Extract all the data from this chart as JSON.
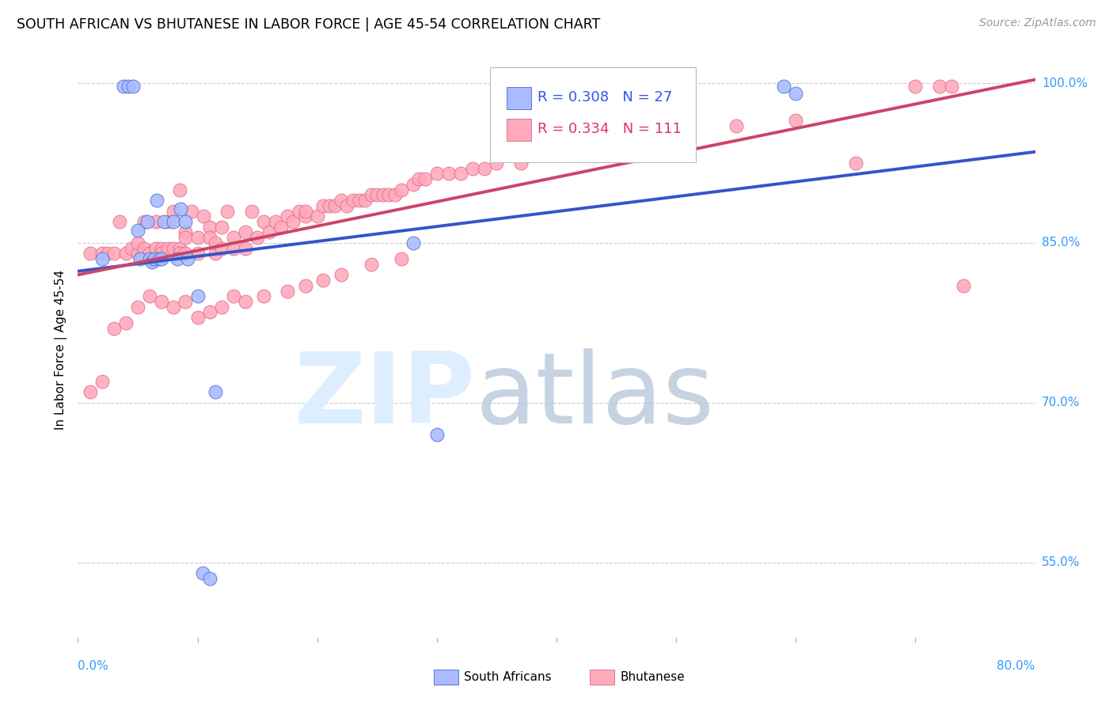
{
  "title": "SOUTH AFRICAN VS BHUTANESE IN LABOR FORCE | AGE 45-54 CORRELATION CHART",
  "source": "Source: ZipAtlas.com",
  "ylabel": "In Labor Force | Age 45-54",
  "xmin": 0.0,
  "xmax": 0.8,
  "ymin": 0.475,
  "ymax": 1.025,
  "yticks": [
    0.55,
    0.7,
    0.85,
    1.0
  ],
  "ytick_labels": [
    "55.0%",
    "70.0%",
    "85.0%",
    "100.0%"
  ],
  "R_blue": 0.308,
  "N_blue": 27,
  "R_pink": 0.334,
  "N_pink": 111,
  "blue_scatter_color": "#AABBFF",
  "blue_scatter_edge": "#4466CC",
  "pink_scatter_color": "#FFAABB",
  "pink_scatter_edge": "#DD6688",
  "blue_line_color": "#3355CC",
  "pink_line_color": "#CC4466",
  "legend_blue_text": "#3355EE",
  "legend_pink_text": "#DD3366",
  "blue_x": [
    0.02,
    0.038,
    0.042,
    0.046,
    0.05,
    0.052,
    0.058,
    0.06,
    0.062,
    0.064,
    0.066,
    0.068,
    0.07,
    0.072,
    0.08,
    0.083,
    0.086,
    0.09,
    0.092,
    0.1,
    0.104,
    0.11,
    0.115,
    0.28,
    0.3,
    0.59,
    0.6
  ],
  "blue_y": [
    0.835,
    0.997,
    0.997,
    0.997,
    0.862,
    0.835,
    0.87,
    0.835,
    0.832,
    0.835,
    0.89,
    0.835,
    0.835,
    0.87,
    0.87,
    0.835,
    0.882,
    0.87,
    0.835,
    0.8,
    0.54,
    0.535,
    0.71,
    0.85,
    0.67,
    0.997,
    0.99
  ],
  "pink_x": [
    0.01,
    0.02,
    0.025,
    0.03,
    0.035,
    0.04,
    0.045,
    0.05,
    0.05,
    0.055,
    0.055,
    0.06,
    0.06,
    0.065,
    0.065,
    0.07,
    0.07,
    0.075,
    0.075,
    0.08,
    0.08,
    0.085,
    0.085,
    0.085,
    0.09,
    0.09,
    0.09,
    0.095,
    0.1,
    0.1,
    0.105,
    0.11,
    0.11,
    0.115,
    0.115,
    0.12,
    0.12,
    0.125,
    0.13,
    0.13,
    0.14,
    0.14,
    0.145,
    0.15,
    0.155,
    0.16,
    0.165,
    0.17,
    0.175,
    0.18,
    0.185,
    0.19,
    0.19,
    0.2,
    0.205,
    0.21,
    0.215,
    0.22,
    0.225,
    0.23,
    0.235,
    0.24,
    0.245,
    0.25,
    0.255,
    0.26,
    0.265,
    0.27,
    0.28,
    0.285,
    0.29,
    0.3,
    0.31,
    0.32,
    0.33,
    0.34,
    0.35,
    0.37,
    0.39,
    0.41,
    0.43,
    0.45,
    0.5,
    0.55,
    0.6,
    0.65,
    0.7,
    0.72,
    0.73,
    0.74,
    0.01,
    0.02,
    0.03,
    0.04,
    0.05,
    0.06,
    0.07,
    0.08,
    0.09,
    0.1,
    0.11,
    0.12,
    0.13,
    0.14,
    0.155,
    0.175,
    0.19,
    0.205,
    0.22,
    0.245,
    0.27
  ],
  "pink_y": [
    0.84,
    0.84,
    0.84,
    0.84,
    0.87,
    0.84,
    0.845,
    0.84,
    0.85,
    0.845,
    0.87,
    0.84,
    0.84,
    0.845,
    0.87,
    0.845,
    0.84,
    0.845,
    0.87,
    0.845,
    0.88,
    0.845,
    0.84,
    0.9,
    0.86,
    0.855,
    0.84,
    0.88,
    0.855,
    0.84,
    0.875,
    0.865,
    0.855,
    0.84,
    0.85,
    0.865,
    0.845,
    0.88,
    0.855,
    0.845,
    0.86,
    0.845,
    0.88,
    0.855,
    0.87,
    0.86,
    0.87,
    0.865,
    0.875,
    0.87,
    0.88,
    0.875,
    0.88,
    0.875,
    0.885,
    0.885,
    0.885,
    0.89,
    0.885,
    0.89,
    0.89,
    0.89,
    0.895,
    0.895,
    0.895,
    0.895,
    0.895,
    0.9,
    0.905,
    0.91,
    0.91,
    0.915,
    0.915,
    0.915,
    0.92,
    0.92,
    0.925,
    0.925,
    0.935,
    0.94,
    0.945,
    0.95,
    0.955,
    0.96,
    0.965,
    0.925,
    0.997,
    0.997,
    0.997,
    0.81,
    0.71,
    0.72,
    0.77,
    0.775,
    0.79,
    0.8,
    0.795,
    0.79,
    0.795,
    0.78,
    0.785,
    0.79,
    0.8,
    0.795,
    0.8,
    0.805,
    0.81,
    0.815,
    0.82,
    0.83,
    0.835
  ]
}
